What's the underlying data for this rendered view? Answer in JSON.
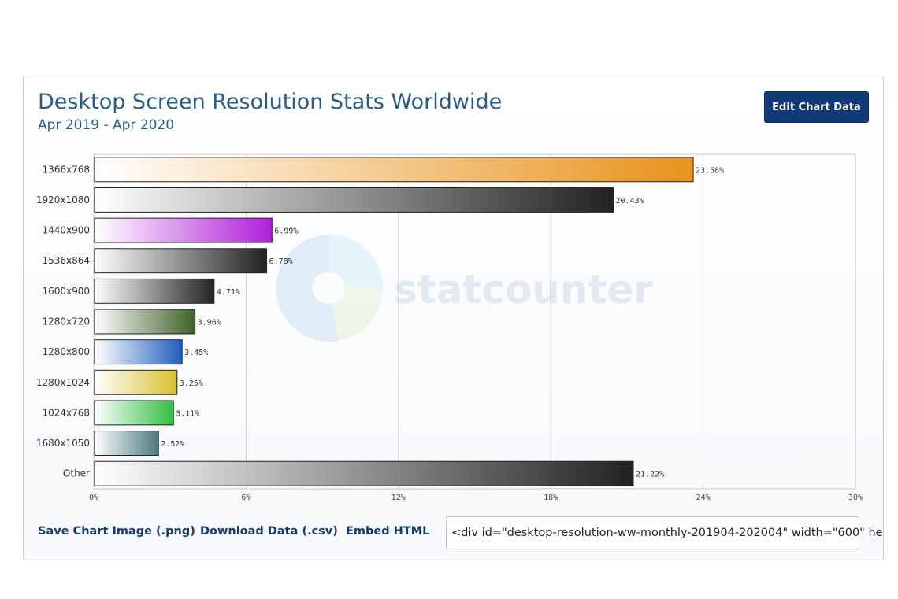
{
  "header": {
    "title": "Desktop Screen Resolution Stats Worldwide",
    "subtitle": "Apr 2019 - Apr 2020",
    "edit_button": "Edit Chart Data"
  },
  "watermark": {
    "text": "statcounter"
  },
  "footer": {
    "save_image": "Save Chart Image (.png)",
    "download_data": "Download Data (.csv)",
    "embed_html": "Embed HTML",
    "embed_code": "<div id=\"desktop-resolution-ww-monthly-201904-202004\" width=\"600\" he"
  },
  "chart_data": {
    "type": "bar",
    "orientation": "horizontal",
    "categories": [
      "1366x768",
      "1920x1080",
      "1440x900",
      "1536x864",
      "1600x900",
      "1280x720",
      "1280x800",
      "1280x1024",
      "1024x768",
      "1680x1050",
      "Other"
    ],
    "values": [
      23.58,
      20.43,
      6.99,
      6.78,
      4.71,
      3.96,
      3.45,
      3.25,
      3.11,
      2.52,
      21.22
    ],
    "value_labels": [
      "23.58%",
      "20.43%",
      "6.99%",
      "6.78%",
      "4.71%",
      "3.96%",
      "3.45%",
      "3.25%",
      "3.11%",
      "2.52%",
      "21.22%"
    ],
    "bar_colors": [
      "#e8931c",
      "#222222",
      "#b020d8",
      "#222222",
      "#222222",
      "#40602a",
      "#2060c0",
      "#d8c030",
      "#30c040",
      "#4a7a7e",
      "#222222"
    ],
    "xlim": [
      0,
      30
    ],
    "xticks": [
      "0%",
      "6%",
      "12%",
      "18%",
      "24%",
      "30%"
    ],
    "grid": true
  }
}
